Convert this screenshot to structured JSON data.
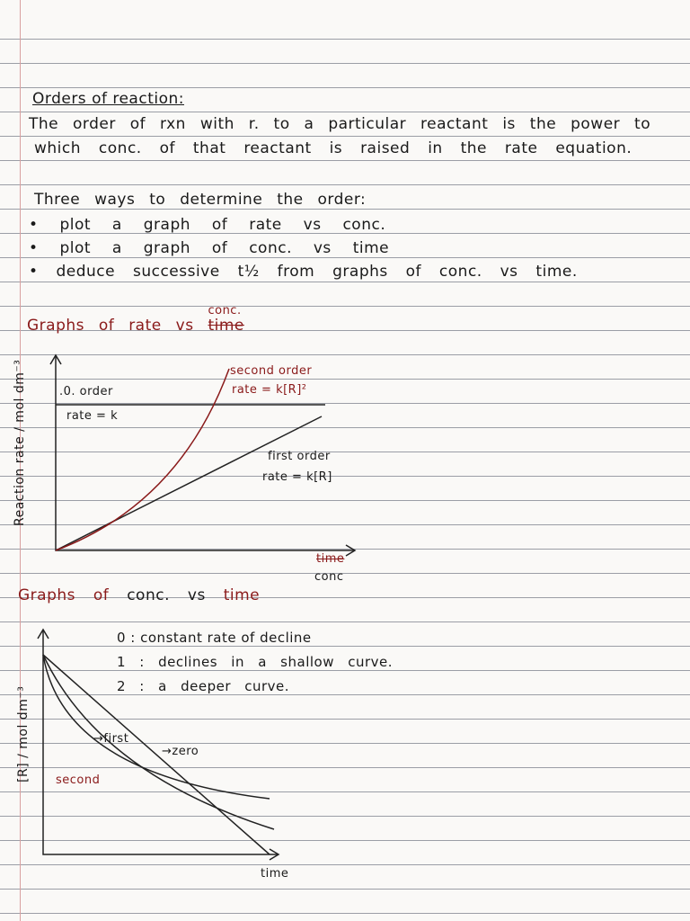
{
  "heading": "Orders of reaction:",
  "definition": [
    "The order of rxn with r. to a particular reactant is the power to",
    "which conc. of that reactant is raised in the rate equation."
  ],
  "methods": {
    "title": "Three ways to determine the order:",
    "items": [
      "plot a graph of rate vs conc.",
      "plot a graph of conc. vs time",
      "deduce successive t½ from graphs of conc. vs time."
    ]
  },
  "graph1": {
    "title": "Graphs of rate vs",
    "title_struck": "time",
    "title_word": "conc.",
    "y_label": "Reaction rate / mol dm⁻³",
    "x_struck": "time",
    "x_label": "conc",
    "zero_name": ".0. order",
    "zero_eq": "rate = k",
    "first_name": "first order",
    "first_eq": "rate = k[R]",
    "second_name": "second order",
    "second_eq": "rate = k[R]²"
  },
  "graph2": {
    "title": "Graphs of",
    "title_word": "conc. vs",
    "title_time": "time",
    "y_label": "[R] / mol dm⁻³",
    "x_label": "time",
    "notes": [
      "0 : constant rate of decline",
      "1 : declines in a shallow curve.",
      "2 : a deeper curve."
    ],
    "first": "→first",
    "zero": "→zero",
    "second": "second"
  }
}
